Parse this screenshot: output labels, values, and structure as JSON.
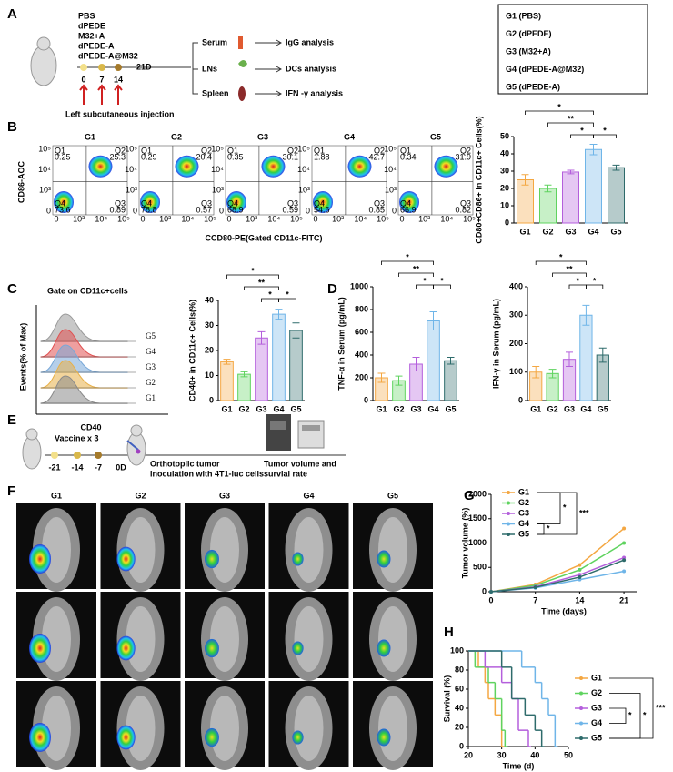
{
  "panel_labels": [
    "A",
    "B",
    "C",
    "D",
    "E",
    "F",
    "G",
    "H"
  ],
  "legend_box": [
    "G1 (PBS)",
    "G2 (dPEDE)",
    "G3 (M32+A)",
    "G4 (dPEDE-A@M32)",
    "G5 (dPEDE-A)"
  ],
  "schematic_a": {
    "groups": [
      "PBS",
      "dPEDE",
      "M32+A",
      "dPEDE-A",
      "dPEDE-A@M32"
    ],
    "timeline": [
      "0",
      "7",
      "14",
      "21D"
    ],
    "injection": "Left subcutaneous injection",
    "samples": [
      "Serum",
      "LNs",
      "Spleen"
    ],
    "analyses": [
      "IgG analysis",
      "DCs analysis",
      "IFN -γ analysis"
    ]
  },
  "flow_b": {
    "ylabel": "CD86-AOC",
    "xlabel": "CCD80-PE(Gated CD11c-FITC)",
    "quadrants": [
      "Q1",
      "Q2",
      "Q3",
      "Q4"
    ],
    "ticks": [
      "0",
      "10³",
      "10⁴",
      "10⁵"
    ],
    "plots": [
      {
        "title": "G1",
        "values": [
          0.25,
          25.3,
          0.89,
          73.6
        ]
      },
      {
        "title": "G2",
        "values": [
          0.29,
          20.4,
          0.57,
          78.8
        ]
      },
      {
        "title": "G3",
        "values": [
          0.35,
          30.1,
          0.59,
          68.9
        ]
      },
      {
        "title": "G4",
        "values": [
          1.88,
          42.7,
          0.85,
          54.6
        ]
      },
      {
        "title": "G5",
        "values": [
          0.34,
          31.9,
          0.82,
          66.9
        ]
      }
    ]
  },
  "histogram_c": {
    "title": "Gate on CD11c+cells",
    "ylabel": "Events(% of Max)",
    "xlabel": "CD40",
    "groups": [
      "G5",
      "G4",
      "G3",
      "G2",
      "G1"
    ]
  },
  "schematic_e": {
    "vaccine": "Vaccine x 3",
    "timeline": [
      "-21",
      "-14",
      "-7",
      "0D"
    ],
    "inoculation": [
      "Orthotopilc tumor",
      "inoculation with 4T1-luc cells"
    ],
    "readout": [
      "Tumor volume and",
      "survial rate"
    ]
  },
  "imaging_f": {
    "groups": [
      "G1",
      "G2",
      "G3",
      "G4",
      "G5"
    ]
  },
  "chart_data": [
    {
      "type": "bar",
      "ylabel": "CD80+CD86+ in CD11c+ Cells(%)",
      "categories": [
        "G1",
        "G2",
        "G3",
        "G4",
        "G5"
      ],
      "values": [
        25,
        20,
        29.5,
        42.5,
        32
      ],
      "errors": [
        3,
        2,
        1,
        3,
        1.5
      ],
      "colors": [
        "#f4a742",
        "#5fd35f",
        "#b45fdc",
        "#6fb5e8",
        "#2e6b6b"
      ],
      "ylim": [
        0,
        50
      ],
      "yticks": [
        0,
        10,
        20,
        30,
        40,
        50
      ],
      "significance": [
        "*",
        "**",
        "*",
        "*"
      ]
    },
    {
      "type": "bar",
      "ylabel": "CD40+ in CD11c+ Cells(%)",
      "categories": [
        "G1",
        "G2",
        "G3",
        "G4",
        "G5"
      ],
      "values": [
        15.5,
        10.5,
        25,
        34.5,
        28
      ],
      "errors": [
        1,
        1,
        2.5,
        2,
        3
      ],
      "colors": [
        "#f4a742",
        "#5fd35f",
        "#b45fdc",
        "#6fb5e8",
        "#2e6b6b"
      ],
      "ylim": [
        0,
        40
      ],
      "yticks": [
        0,
        10,
        20,
        30,
        40
      ],
      "significance": [
        "*",
        "**",
        "*",
        "*"
      ]
    },
    {
      "type": "bar",
      "ylabel": "TNF-α in Serum (pg/mL)",
      "categories": [
        "G1",
        "G2",
        "G3",
        "G4",
        "G5"
      ],
      "values": [
        200,
        175,
        320,
        700,
        350
      ],
      "errors": [
        40,
        40,
        60,
        80,
        30
      ],
      "colors": [
        "#f4a742",
        "#5fd35f",
        "#b45fdc",
        "#6fb5e8",
        "#2e6b6b"
      ],
      "ylim": [
        0,
        1000
      ],
      "yticks": [
        0,
        200,
        400,
        600,
        800,
        1000
      ],
      "significance": [
        "*",
        "**",
        "*",
        "*"
      ]
    },
    {
      "type": "bar",
      "ylabel": "IFN-γ in Serum (pg/mL)",
      "categories": [
        "G1",
        "G2",
        "G3",
        "G4",
        "G5"
      ],
      "values": [
        100,
        95,
        145,
        300,
        160
      ],
      "errors": [
        20,
        15,
        25,
        35,
        25
      ],
      "colors": [
        "#f4a742",
        "#5fd35f",
        "#b45fdc",
        "#6fb5e8",
        "#2e6b6b"
      ],
      "ylim": [
        0,
        400
      ],
      "yticks": [
        0,
        100,
        200,
        300,
        400
      ],
      "significance": [
        "*",
        "**",
        "*",
        "*"
      ]
    },
    {
      "type": "line",
      "ylabel": "Tumor volume (%)",
      "xlabel": "Time (days)",
      "x": [
        0,
        7,
        14,
        21
      ],
      "xlim": [
        0,
        23
      ],
      "xticks": [
        0,
        7,
        14,
        21
      ],
      "ylim": [
        0,
        2000
      ],
      "yticks": [
        0,
        500,
        1000,
        1500,
        2000
      ],
      "series": [
        {
          "name": "G1",
          "color": "#f4a742",
          "values": [
            0,
            150,
            550,
            1300
          ]
        },
        {
          "name": "G2",
          "color": "#5fd35f",
          "values": [
            0,
            130,
            450,
            1000
          ]
        },
        {
          "name": "G3",
          "color": "#b45fdc",
          "values": [
            0,
            100,
            350,
            700
          ]
        },
        {
          "name": "G4",
          "color": "#6fb5e8",
          "values": [
            0,
            80,
            250,
            420
          ]
        },
        {
          "name": "G5",
          "color": "#2e6b6b",
          "values": [
            0,
            90,
            300,
            650
          ]
        }
      ],
      "significance": [
        "***",
        "*",
        "*"
      ]
    },
    {
      "type": "step",
      "ylabel": "Survival (%)",
      "xlabel": "Time (d)",
      "xlim": [
        20,
        50
      ],
      "xticks": [
        20,
        30,
        40,
        50
      ],
      "ylim": [
        0,
        100
      ],
      "yticks": [
        0,
        20,
        40,
        60,
        80,
        100
      ],
      "series": [
        {
          "name": "G1",
          "color": "#f4a742",
          "x": [
            20,
            23,
            25,
            26,
            28,
            30
          ],
          "values": [
            100,
            83,
            67,
            50,
            33,
            0
          ]
        },
        {
          "name": "G2",
          "color": "#5fd35f",
          "x": [
            20,
            22,
            26,
            28,
            30,
            31
          ],
          "values": [
            100,
            83,
            67,
            50,
            17,
            0
          ]
        },
        {
          "name": "G3",
          "color": "#b45fdc",
          "x": [
            20,
            25,
            30,
            33,
            35,
            38
          ],
          "values": [
            100,
            83,
            67,
            50,
            17,
            0
          ]
        },
        {
          "name": "G4",
          "color": "#6fb5e8",
          "x": [
            20,
            36,
            40,
            42,
            44,
            46
          ],
          "values": [
            100,
            83,
            67,
            50,
            33,
            0
          ]
        },
        {
          "name": "G5",
          "color": "#2e6b6b",
          "x": [
            20,
            30,
            33,
            37,
            40,
            42
          ],
          "values": [
            100,
            83,
            50,
            33,
            17,
            0
          ]
        }
      ],
      "significance": [
        "***",
        "*",
        "*"
      ]
    }
  ]
}
